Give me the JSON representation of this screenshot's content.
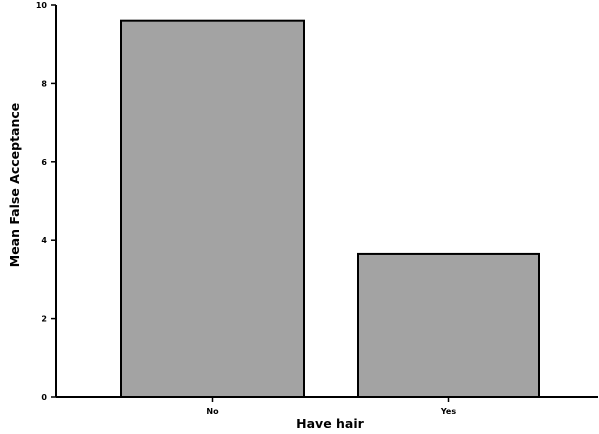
{
  "chart_data": {
    "type": "bar",
    "categories": [
      "No",
      "Yes"
    ],
    "values": [
      9.6,
      3.65
    ],
    "xlabel": "Have hair",
    "ylabel": "Mean False Acceptance",
    "ylim": [
      0,
      10
    ],
    "yticks": [
      "0",
      "2",
      "4",
      "6",
      "8",
      "10"
    ],
    "grid": false,
    "legend": "none",
    "colors": {
      "bar_fill": "#a3a3a3",
      "bar_stroke": "#000000",
      "axis": "#000000"
    }
  }
}
